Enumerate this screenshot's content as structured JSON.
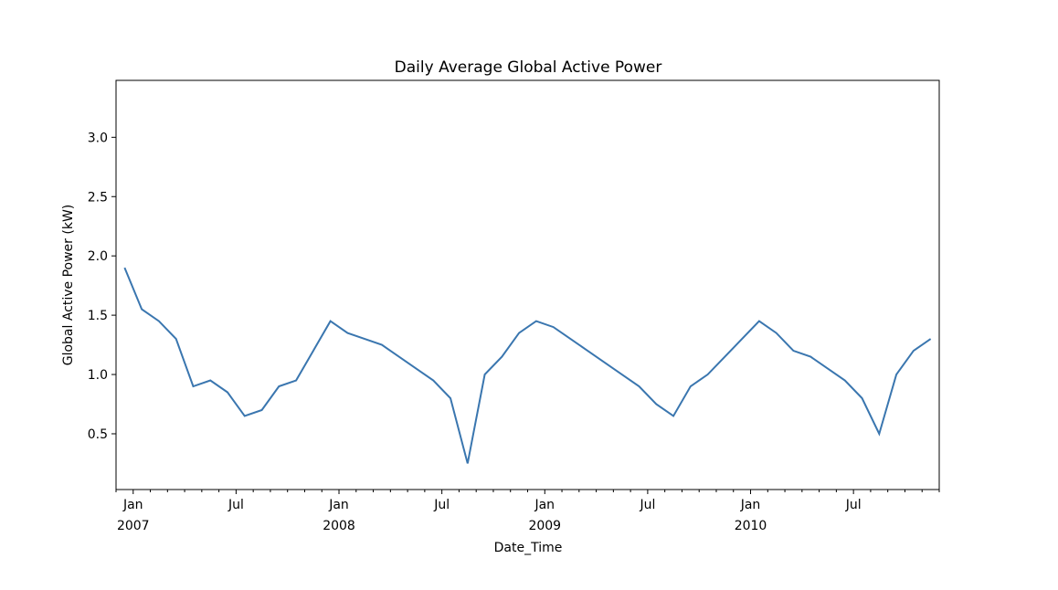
{
  "chart_data": {
    "type": "line",
    "title": "Daily Average Global Active Power",
    "xlabel": "Date_Time",
    "ylabel": "Global Active Power (kW)",
    "x": [
      "2006-12",
      "2007-01",
      "2007-02",
      "2007-03",
      "2007-04",
      "2007-05",
      "2007-06",
      "2007-07",
      "2007-08",
      "2007-09",
      "2007-10",
      "2007-11",
      "2007-12",
      "2008-01",
      "2008-02",
      "2008-03",
      "2008-04",
      "2008-05",
      "2008-06",
      "2008-07",
      "2008-08",
      "2008-09",
      "2008-10",
      "2008-11",
      "2008-12",
      "2009-01",
      "2009-02",
      "2009-03",
      "2009-04",
      "2009-05",
      "2009-06",
      "2009-07",
      "2009-08",
      "2009-09",
      "2009-10",
      "2009-11",
      "2009-12",
      "2010-01",
      "2010-02",
      "2010-03",
      "2010-04",
      "2010-05",
      "2010-06",
      "2010-07",
      "2010-08",
      "2010-09",
      "2010-10",
      "2010-11"
    ],
    "series": [
      {
        "name": "Global_active_power",
        "color": "#3a76af",
        "values": [
          1.9,
          1.55,
          1.45,
          1.3,
          0.9,
          0.95,
          0.85,
          0.65,
          0.7,
          0.9,
          0.95,
          1.2,
          1.45,
          1.35,
          1.3,
          1.25,
          1.15,
          1.05,
          0.95,
          0.8,
          0.25,
          1.0,
          1.15,
          1.35,
          1.45,
          1.4,
          1.3,
          1.2,
          1.1,
          1.0,
          0.9,
          0.75,
          0.65,
          0.9,
          1.0,
          1.15,
          1.3,
          1.45,
          1.35,
          1.2,
          1.15,
          1.05,
          0.95,
          0.8,
          0.5,
          1.0,
          1.2,
          1.3
        ]
      }
    ],
    "xlim": [
      "2006-12",
      "2010-12"
    ],
    "xticks": [
      {
        "value": "2007-01",
        "label": "Jan"
      },
      {
        "value": "2007-07",
        "label": "Jul"
      },
      {
        "value": "2008-01",
        "label": "Jan"
      },
      {
        "value": "2008-07",
        "label": "Jul"
      },
      {
        "value": "2009-01",
        "label": "Jan"
      },
      {
        "value": "2009-07",
        "label": "Jul"
      },
      {
        "value": "2010-01",
        "label": "Jan"
      },
      {
        "value": "2010-07",
        "label": "Jul"
      }
    ],
    "xyears": [
      {
        "value": "2007-01",
        "label": "2007"
      },
      {
        "value": "2008-01",
        "label": "2008"
      },
      {
        "value": "2009-01",
        "label": "2009"
      },
      {
        "value": "2010-01",
        "label": "2010"
      }
    ],
    "ylim": [
      0.03,
      3.48
    ],
    "yticks": [
      0.5,
      {
        "value": 1.0,
        "label": "1.0"
      },
      1.5,
      {
        "value": 2.0,
        "label": "2.0"
      },
      2.5,
      {
        "value": 3.0,
        "label": "3.0"
      }
    ],
    "grid": false
  }
}
